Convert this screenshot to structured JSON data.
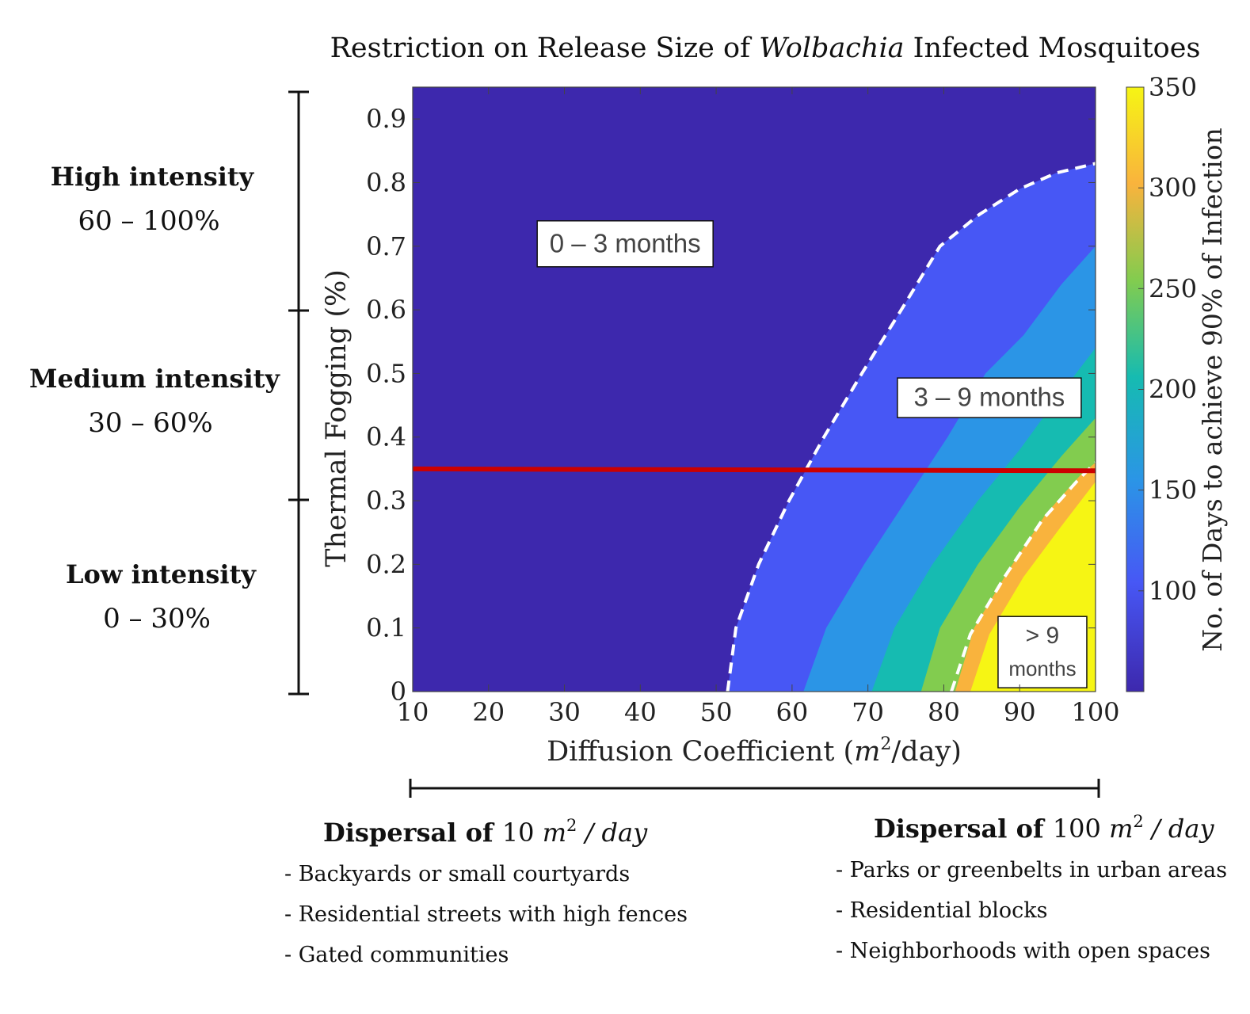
{
  "chart_data": {
    "type": "heatmap",
    "title_parts": [
      "Restriction on Release Size of ",
      "Wolbachia",
      " Infected Mosquitoes"
    ],
    "x": {
      "label_parts": [
        "Diffusion Coefficient (",
        "m",
        "2",
        "/day)"
      ],
      "range": [
        10,
        100
      ],
      "ticks": [
        10,
        20,
        30,
        40,
        50,
        60,
        70,
        80,
        90,
        100
      ],
      "tick_labels": [
        "10",
        "20",
        "30",
        "40",
        "50",
        "60",
        "70",
        "80",
        "90",
        "100"
      ]
    },
    "y": {
      "label": "Thermal Fogging (%)",
      "range": [
        0,
        0.95
      ],
      "ticks": [
        0,
        0.1,
        0.2,
        0.3,
        0.4,
        0.5,
        0.6,
        0.7,
        0.8,
        0.9
      ],
      "tick_labels": [
        "0",
        "0.1",
        "0.2",
        "0.3",
        "0.4",
        "0.5",
        "0.6",
        "0.7",
        "0.8",
        "0.9"
      ]
    },
    "colorbar": {
      "label": "No. of Days to achieve 90% of Infection",
      "range": [
        50,
        350
      ],
      "ticks": [
        100,
        150,
        200,
        250,
        300,
        350
      ],
      "tick_labels": [
        "100",
        "150",
        "200",
        "250",
        "300",
        "350"
      ]
    },
    "bands": [
      {
        "days": 60,
        "color": "#3d28ad",
        "boundary_x": [
          51.5,
          52.6,
          55.6,
          59.6,
          64.2,
          69.2,
          74.4,
          79.5,
          84.7,
          90.0,
          94.8,
          100.0
        ],
        "boundary_y": [
          0.0,
          0.1,
          0.2,
          0.3,
          0.4,
          0.5,
          0.6,
          0.7,
          0.75,
          0.79,
          0.815,
          0.83
        ]
      },
      {
        "days": 110,
        "color": "#4757f5",
        "boundary_x": [
          61.5,
          64.5,
          69.5,
          75.0,
          80.5,
          85.5,
          90.5,
          95.5,
          100.0
        ],
        "boundary_y": [
          0.0,
          0.1,
          0.2,
          0.3,
          0.4,
          0.5,
          0.56,
          0.64,
          0.7
        ]
      },
      {
        "days": 155,
        "color": "#2b95e6",
        "boundary_x": [
          70.5,
          73.5,
          78.5,
          84.5,
          90.0,
          95.5,
          100.0
        ],
        "boundary_y": [
          0.0,
          0.1,
          0.2,
          0.3,
          0.38,
          0.47,
          0.54
        ]
      },
      {
        "days": 210,
        "color": "#16bbb1",
        "boundary_x": [
          77.0,
          79.5,
          84.5,
          90.0,
          95.5,
          100.0
        ],
        "boundary_y": [
          0.0,
          0.1,
          0.2,
          0.29,
          0.37,
          0.43
        ]
      },
      {
        "days": 260,
        "color": "#82cc4f",
        "boundary_x": [
          81.5,
          84.0,
          88.5,
          93.5,
          98.0,
          100.0
        ],
        "boundary_y": [
          0.0,
          0.1,
          0.19,
          0.28,
          0.34,
          0.36
        ]
      },
      {
        "days": 310,
        "color": "#f9b33d",
        "boundary_x": [
          83.5,
          86.0,
          90.5,
          95.5,
          100.0
        ],
        "boundary_y": [
          0.0,
          0.09,
          0.18,
          0.26,
          0.33
        ]
      },
      {
        "days": 350,
        "color": "#f6f514"
      }
    ],
    "dashed_boundaries": [
      {
        "color": "#ffffff",
        "x": [
          51.5,
          52.6,
          55.6,
          59.6,
          64.2,
          69.2,
          74.4,
          79.5,
          84.7,
          90.0,
          94.8,
          100.0
        ],
        "y": [
          0.0,
          0.1,
          0.2,
          0.3,
          0.4,
          0.5,
          0.6,
          0.7,
          0.75,
          0.79,
          0.815,
          0.83
        ]
      },
      {
        "color": "#ffffff",
        "x": [
          81.0,
          83.5,
          88.0,
          93.0,
          97.5,
          100.0
        ],
        "y": [
          0.0,
          0.09,
          0.18,
          0.27,
          0.33,
          0.36
        ]
      }
    ],
    "threshold_line": {
      "color": "#cc0000",
      "x": [
        10,
        100
      ],
      "y": [
        0.35,
        0.347
      ]
    },
    "region_labels": [
      {
        "text": "0 – 3 months",
        "x": 38,
        "y": 0.705
      },
      {
        "text": "3 – 9 months",
        "x": 86,
        "y": 0.463
      },
      {
        "text": "> 9",
        "x": 93,
        "y": 0.088
      },
      {
        "text": "months",
        "x": 93,
        "y": 0.036
      }
    ]
  },
  "intensity_scale": {
    "levels": [
      {
        "name": "High intensity",
        "range": "60 – 100%"
      },
      {
        "name": "Medium intensity",
        "range": "30 – 60%"
      },
      {
        "name": "Low intensity",
        "range": "0 – 30%"
      }
    ]
  },
  "dispersal": {
    "low": {
      "title_prefix": "Dispersal of ",
      "value": "10 ",
      "unit_m": "m",
      "unit_exp": "2",
      "unit_rest": " / day",
      "items": [
        "- Backyards or small courtyards",
        "- Residential streets with high fences",
        "- Gated communities"
      ]
    },
    "high": {
      "title_prefix": "Dispersal of ",
      "value": "100 ",
      "unit_m": "m",
      "unit_exp": "2",
      "unit_rest": " / day",
      "items": [
        "- Parks or greenbelts in urban areas",
        "- Residential blocks",
        "- Neighborhoods with open spaces"
      ]
    }
  }
}
